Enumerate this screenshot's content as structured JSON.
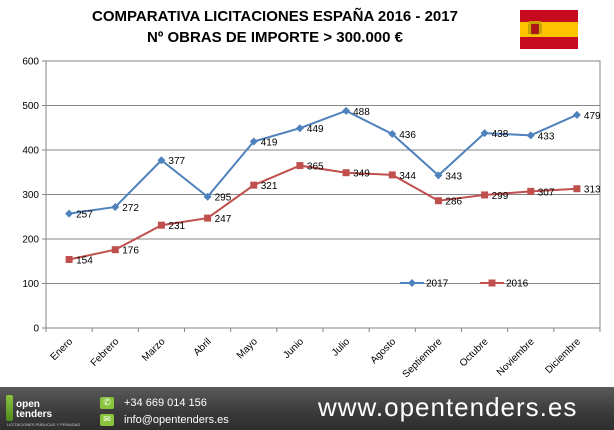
{
  "chart_data": {
    "type": "line",
    "title": "COMPARATIVA LICITACIONES ESPAÑA 2016 - 2017",
    "subtitle": "Nº OBRAS DE IMPORTE > 300.000 €",
    "categories": [
      "Enero",
      "Febrero",
      "Marzo",
      "Abril",
      "Mayo",
      "Junio",
      "Julio",
      "Agosto",
      "Septiembre",
      "Octubre",
      "Noviembre",
      "Diciembre"
    ],
    "series": [
      {
        "name": "2017",
        "color": "#4f81bd",
        "marker": "diamond",
        "values": [
          257,
          272,
          377,
          295,
          419,
          449,
          488,
          436,
          343,
          438,
          433,
          479
        ]
      },
      {
        "name": "2016",
        "color": "#c0504d",
        "marker": "square",
        "values": [
          154,
          176,
          231,
          247,
          321,
          365,
          349,
          344,
          286,
          299,
          307,
          313
        ]
      }
    ],
    "ylim": [
      0,
      600
    ],
    "yticks": [
      0,
      100,
      200,
      300,
      400,
      500,
      600
    ],
    "grid": true,
    "legend": "bottom-right inside plot",
    "xlabel": "",
    "ylabel": ""
  },
  "flag": {
    "name": "spain-flag",
    "colors": [
      "#c60b1e",
      "#ffc400"
    ]
  },
  "footer": {
    "logo_line1": "open",
    "logo_line2": "tenders",
    "logo_sub": "LICITACIONES PÚBLICAS Y PRIVADAS",
    "phone": "+34 669 014 156",
    "email": "info@opentenders.es",
    "website": "www.opentenders.es",
    "phone_icon": "phone-icon",
    "email_icon": "mail-icon"
  }
}
